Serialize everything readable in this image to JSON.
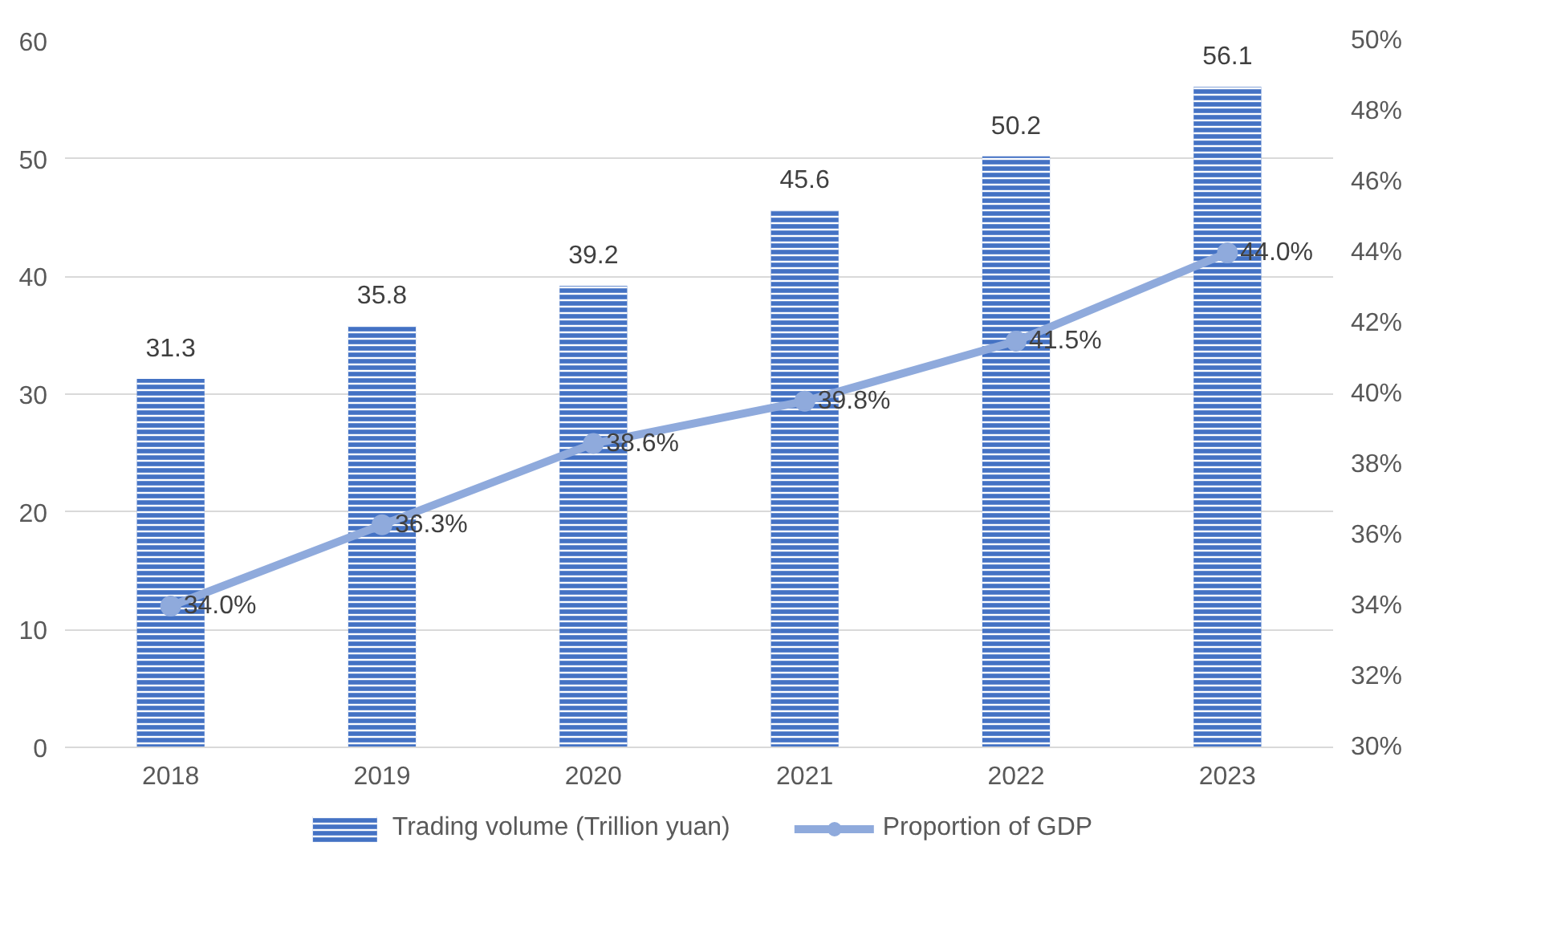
{
  "chart_data": {
    "type": "bar",
    "categories": [
      "2018",
      "2019",
      "2020",
      "2021",
      "2022",
      "2023"
    ],
    "series": [
      {
        "name": "Trading volume (Trillion yuan)",
        "color": "#4472c4",
        "values": [
          31.3,
          35.8,
          39.2,
          45.6,
          50.2,
          56.1
        ],
        "value_labels": [
          "31.3",
          "35.8",
          "39.2",
          "45.6",
          "50.2",
          "56.1"
        ]
      },
      {
        "name": "Proportion of GDP",
        "type": "line",
        "axis": "y2",
        "color": "#8faadc",
        "values": [
          34.0,
          36.3,
          38.6,
          39.8,
          41.5,
          44.0
        ],
        "value_labels": [
          "34.0%",
          "36.3%",
          "38.6%",
          "39.8%",
          "41.5%",
          "44.0%"
        ]
      }
    ],
    "ylim": [
      0,
      60
    ],
    "yticks": [
      0,
      10,
      20,
      30,
      40,
      50,
      60
    ],
    "y2lim": [
      30,
      50
    ],
    "y2ticks": [
      {
        "value": 30,
        "label": "30%"
      },
      {
        "value": 32,
        "label": "32%"
      },
      {
        "value": 34,
        "label": "34%"
      },
      {
        "value": 36,
        "label": "36%"
      },
      {
        "value": 38,
        "label": "38%"
      },
      {
        "value": 40,
        "label": "40%"
      },
      {
        "value": 42,
        "label": "42%"
      },
      {
        "value": 44,
        "label": "44%"
      },
      {
        "value": 46,
        "label": "46%"
      },
      {
        "value": 48,
        "label": "48%"
      },
      {
        "value": 50,
        "label": "50%"
      }
    ],
    "grid": "y",
    "legend": "bottom",
    "marker": "circle",
    "line_style": "solid"
  }
}
